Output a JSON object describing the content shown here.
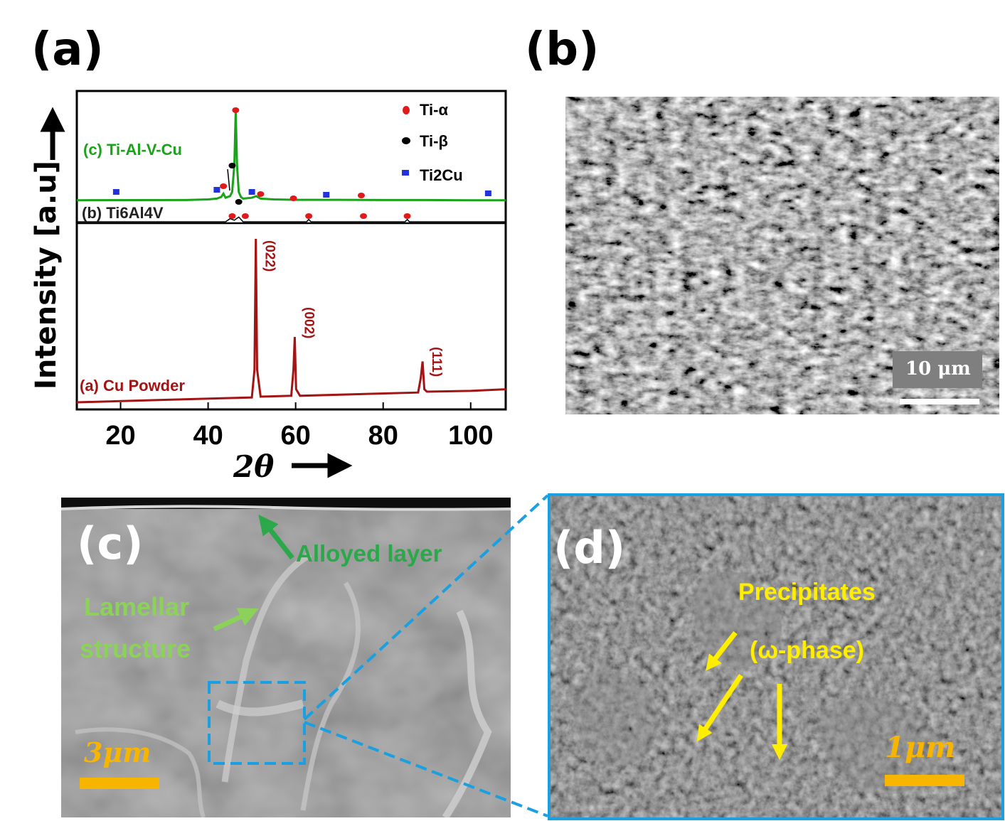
{
  "panels": {
    "a": "(a)",
    "b": "(b)",
    "c": "(c)",
    "d": "(d)"
  },
  "chart_data": {
    "type": "line",
    "xlabel": "2θ",
    "ylabel": "Intensity [a.u]",
    "xlim": [
      10,
      108
    ],
    "xticks": [
      20,
      40,
      60,
      80,
      100
    ],
    "series": [
      {
        "name": "(c) Ti-Al-V-Cu",
        "color": "#1aa31a",
        "x": [
          10,
          35,
          40,
          42,
          43,
          43.5,
          44,
          45,
          45.5,
          46,
          46.3,
          46.6,
          47,
          47.5,
          48,
          50,
          51,
          52,
          55,
          60,
          70,
          80,
          90,
          100,
          108
        ],
        "y": [
          2,
          2.2,
          3,
          4,
          6,
          10,
          5,
          7,
          12,
          45,
          110,
          45,
          12,
          6,
          4,
          5,
          7,
          4,
          3,
          2.5,
          2.5,
          2.2,
          2.2,
          2,
          2
        ]
      },
      {
        "name": "(b) Ti6Al4V",
        "color": "#000000",
        "x": [
          10,
          40,
          44,
          45,
          46,
          47,
          48,
          55,
          62.5,
          63,
          63.5,
          75,
          85,
          85.5,
          86,
          108
        ],
        "y": [
          0,
          0,
          0,
          2,
          1,
          3,
          0,
          0,
          0,
          1.5,
          0,
          0,
          0,
          1.5,
          0,
          0
        ]
      },
      {
        "name": "(a) Cu Powder",
        "color": "#a31515",
        "x": [
          10,
          30,
          50,
          50.6,
          50.9,
          51.2,
          52,
          59,
          59.5,
          59.8,
          60.1,
          61,
          88,
          88.6,
          89,
          89.4,
          90,
          100,
          108
        ],
        "y": [
          0,
          1.5,
          3,
          20,
          100,
          20,
          3.5,
          4,
          20,
          40,
          8,
          4,
          6,
          15,
          25,
          8,
          6.5,
          7,
          8
        ]
      }
    ],
    "peak_labels": [
      {
        "text": "(022)",
        "x": 50.9
      },
      {
        "text": "(002)",
        "x": 59.8
      },
      {
        "text": "(111)",
        "x": 89.0
      }
    ],
    "legend": [
      {
        "label": "Ti-α",
        "marker": "red-ellipse",
        "color": "#e0191b"
      },
      {
        "label": "Ti-β",
        "marker": "black-ellipse",
        "color": "#000000"
      },
      {
        "label": "Ti2Cu",
        "marker": "blue-square",
        "color": "#2233dd"
      }
    ],
    "markers_c": {
      "ti_alpha": [
        43.5,
        46.3,
        52,
        59.5,
        75
      ],
      "ti_beta": [
        45.5
      ],
      "ti2cu": [
        19,
        42,
        50,
        67,
        104
      ]
    },
    "markers_b": {
      "ti_alpha": [
        45.5,
        48.5,
        63,
        75.5,
        85.5
      ],
      "ti_beta": [
        47
      ]
    }
  },
  "sem_b": {
    "scale_bar": "10 μm"
  },
  "sem_c": {
    "scale_bar": "3μm",
    "annotations": [
      "Alloyed layer",
      "Lamellar",
      "structure"
    ]
  },
  "sem_d": {
    "scale_bar": "1μm",
    "annotations": [
      "Precipitates",
      "(ω-phase)"
    ]
  },
  "colors": {
    "frame_blue": "#1a9fe0",
    "scale_orange": "#f7b500",
    "annot_yellow": "#ffee00",
    "annot_green": "#2aa84a",
    "annot_light_green": "#8cd15a"
  }
}
